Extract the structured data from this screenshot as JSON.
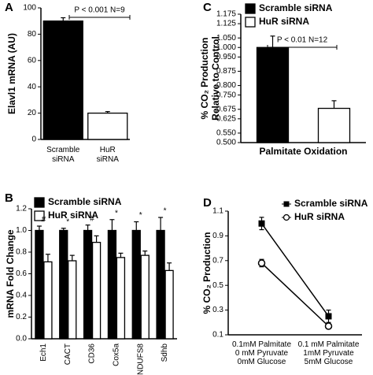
{
  "chart_data": [
    {
      "type": "bar",
      "panel": "A",
      "ylabel": "Elavl1 mRNA (AU)",
      "categories": [
        "Scramble\nsiRNA",
        "HuR\nsiRNA"
      ],
      "values": [
        90,
        20
      ],
      "errors": [
        2.5,
        1.2
      ],
      "colors": [
        "#000000",
        "#ffffff"
      ],
      "ylim": [
        0,
        100
      ],
      "yticks": [
        0,
        20,
        40,
        60,
        80,
        100
      ],
      "annotation": "P < 0.001 N=9"
    },
    {
      "type": "bar",
      "panel": "C",
      "ylabel": "% CO₂ Production\nRelative to Control",
      "xlabel": "Palmitate Oxidation",
      "categories": [
        null
      ],
      "series": [
        {
          "name": "Scramble siRNA",
          "color": "#000000",
          "values": [
            1.0
          ],
          "errors": [
            0.06
          ]
        },
        {
          "name": "HuR siRNA",
          "color": "#ffffff",
          "values": [
            0.68
          ],
          "errors": [
            0.04
          ]
        }
      ],
      "ylim": [
        0.5,
        1.175
      ],
      "yticks": [
        {
          "value": 0.5,
          "label": "0.500"
        },
        {
          "value": 0.55,
          "label": "0.550"
        },
        {
          "value": 0.625,
          "label": "0.625"
        },
        {
          "value": 0.675,
          "label": "0.675"
        },
        {
          "value": 0.75,
          "label": "0.750"
        },
        {
          "value": 0.8,
          "label": "0.800"
        },
        {
          "value": 0.875,
          "label": "0.875"
        },
        {
          "value": 0.95,
          "label": "0.950"
        },
        {
          "value": 1.0,
          "label": "1.000"
        },
        {
          "value": 1.05,
          "label": "1.050"
        },
        {
          "value": 1.125,
          "label": "1.125"
        },
        {
          "value": 1.175,
          "label": "1.175"
        }
      ],
      "annotation": "P < 0.01 N=12"
    },
    {
      "type": "bar",
      "panel": "B",
      "ylabel": "mRNA Fold Change",
      "categories": [
        "Ech1",
        "CACT",
        "CD36",
        "Cox5a",
        "NDUFS8",
        "Sdhb"
      ],
      "series": [
        {
          "name": "Scramble siRNA",
          "color": "#000000",
          "values": [
            1.0,
            1.0,
            1.0,
            1.0,
            1.0,
            1.0
          ],
          "errors": [
            0.04,
            0.02,
            0.05,
            0.1,
            0.08,
            0.12
          ]
        },
        {
          "name": "HuR siRNA",
          "color": "#ffffff",
          "values": [
            0.71,
            0.72,
            0.89,
            0.75,
            0.77,
            0.63
          ],
          "errors": [
            0.07,
            0.05,
            0.06,
            0.04,
            0.04,
            0.07
          ]
        }
      ],
      "markers": [
        "#",
        "*",
        "#",
        "*",
        "*",
        "*"
      ],
      "ylim": [
        0,
        1.2
      ],
      "yticks": [
        {
          "value": 0,
          "label": "0.0"
        },
        0.2,
        0.4,
        0.6,
        0.8,
        {
          "value": 1,
          "label": "1.0"
        },
        1.2
      ]
    },
    {
      "type": "line",
      "panel": "D",
      "ylabel": "% CO₂ Production",
      "categories": [
        "0.1mM Palmitate\n0 mM Pyruvate\n0mM Glucose",
        "0.1 mM Palmitate\n1mM Pyruvate\n5mM Glucose"
      ],
      "series": [
        {
          "name": "Scramble siRNA",
          "color": "#000000",
          "marker": "square",
          "values": [
            1.0,
            0.25
          ],
          "errors": [
            0.05,
            0.05
          ]
        },
        {
          "name": "HuR siRNA",
          "color": "#ffffff",
          "marker": "circle",
          "values": [
            0.68,
            0.17
          ],
          "errors": [
            0.03,
            0.02
          ]
        }
      ],
      "ylim": [
        0.1,
        1.1
      ],
      "yticks": [
        0.1,
        0.3,
        0.5,
        0.7,
        0.9,
        1.1
      ]
    }
  ]
}
